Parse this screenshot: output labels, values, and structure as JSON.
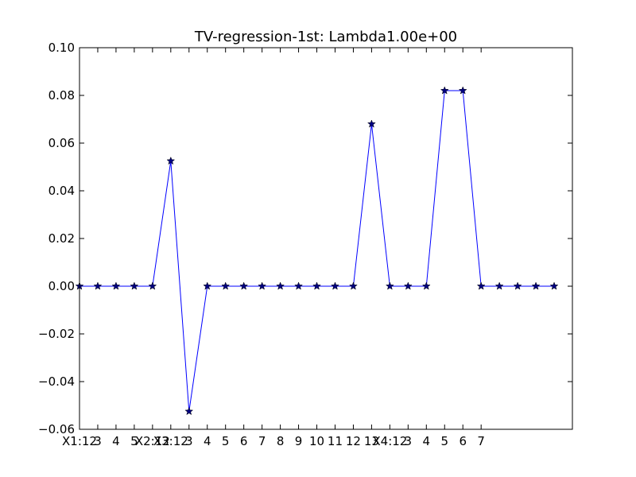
{
  "chart_data": {
    "type": "line",
    "title": "TV-regression-1st: Lambda1.00e+00",
    "xlabel": "",
    "ylabel": "",
    "x_tick_labels": [
      "X1:12",
      "3",
      "4",
      "5",
      "X2:12",
      "X3:12",
      "3",
      "4",
      "5",
      "6",
      "7",
      "8",
      "9",
      "10",
      "11",
      "12",
      "13",
      "X4:12",
      "3",
      "4",
      "5",
      "6",
      "7"
    ],
    "x_tick_positions": [
      0,
      1,
      2,
      3,
      4,
      5,
      6,
      7,
      8,
      9,
      10,
      11,
      12,
      13,
      14,
      15,
      16,
      17,
      18,
      19,
      20,
      21,
      22
    ],
    "xlim": [
      0,
      27
    ],
    "ylim": [
      -0.06,
      0.1
    ],
    "y_ticks": [
      -0.06,
      -0.04,
      -0.02,
      0.0,
      0.02,
      0.04,
      0.06,
      0.08,
      0.1
    ],
    "y_tick_labels": [
      "−0.06",
      "−0.04",
      "−0.02",
      "0.00",
      "0.02",
      "0.04",
      "0.06",
      "0.08",
      "0.10"
    ],
    "grid": false,
    "series": [
      {
        "x": [
          0,
          1,
          2,
          3,
          4,
          5,
          6,
          7,
          8,
          9,
          10,
          11,
          12,
          13,
          14,
          15,
          16,
          17,
          18,
          19,
          20,
          21,
          22,
          23,
          24,
          25,
          26
        ],
        "values": [
          0,
          0,
          0,
          0,
          0,
          0.0525,
          -0.0525,
          0,
          0,
          0,
          0,
          0,
          0,
          0,
          0,
          0,
          0.068,
          0,
          0,
          0,
          0.082,
          0.082,
          0,
          0,
          0,
          0,
          0
        ],
        "color": "#0000ff",
        "marker": "star",
        "marker_color": "#000080"
      }
    ]
  }
}
